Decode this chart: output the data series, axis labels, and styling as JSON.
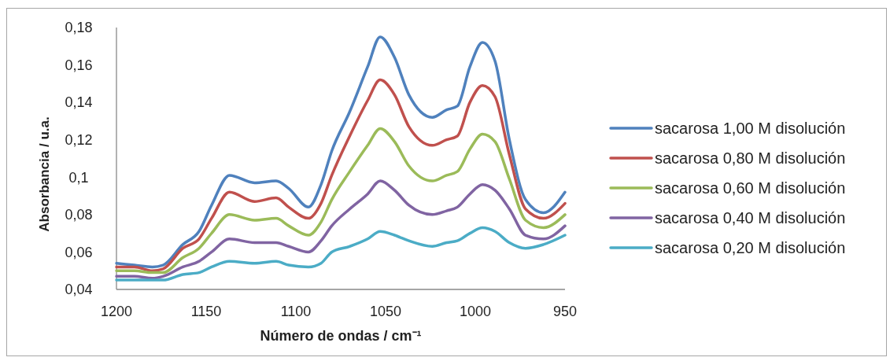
{
  "chart_data": {
    "type": "line",
    "xlabel": "Número de ondas / cm⁻¹",
    "ylabel": "Absorbancia / u.a.",
    "x": [
      1200,
      1190,
      1180,
      1174,
      1163,
      1154,
      1147,
      1137,
      1123,
      1111,
      1104,
      1093,
      1086,
      1080,
      1070,
      1060,
      1053,
      1045,
      1037,
      1024,
      1016,
      1010,
      1003,
      996,
      989,
      981,
      972,
      962,
      950
    ],
    "xlim": [
      1200,
      950
    ],
    "xticks": [
      1200,
      1150,
      1100,
      1050,
      1000,
      950
    ],
    "ylim": [
      0.04,
      0.18
    ],
    "yticks": [
      {
        "value": 0.04,
        "label": "0,04"
      },
      {
        "value": 0.06,
        "label": "0,06"
      },
      {
        "value": 0.08,
        "label": "0,08"
      },
      {
        "value": 0.1,
        "label": "0,1"
      },
      {
        "value": 0.12,
        "label": "0,12"
      },
      {
        "value": 0.14,
        "label": "0,14"
      },
      {
        "value": 0.16,
        "label": "0,16"
      },
      {
        "value": 0.18,
        "label": "0,18"
      }
    ],
    "legend": "right",
    "series": [
      {
        "name": "sacarosa 1,00 M disolución",
        "color": "#4f81bd",
        "values": [
          0.054,
          0.053,
          0.052,
          0.053,
          0.064,
          0.071,
          0.085,
          0.101,
          0.097,
          0.098,
          0.094,
          0.084,
          0.096,
          0.114,
          0.135,
          0.159,
          0.175,
          0.164,
          0.144,
          0.132,
          0.136,
          0.138,
          0.159,
          0.172,
          0.162,
          0.12,
          0.088,
          0.081,
          0.092
        ]
      },
      {
        "name": "sacarosa 0,80 M disolución",
        "color": "#c0504d",
        "values": [
          0.052,
          0.052,
          0.05,
          0.051,
          0.062,
          0.067,
          0.078,
          0.092,
          0.087,
          0.089,
          0.084,
          0.078,
          0.086,
          0.101,
          0.122,
          0.141,
          0.152,
          0.144,
          0.127,
          0.117,
          0.12,
          0.122,
          0.14,
          0.149,
          0.143,
          0.112,
          0.083,
          0.078,
          0.086
        ]
      },
      {
        "name": "sacarosa 0,60 M disolución",
        "color": "#9bbb59",
        "values": [
          0.05,
          0.05,
          0.049,
          0.049,
          0.057,
          0.062,
          0.07,
          0.08,
          0.077,
          0.078,
          0.074,
          0.069,
          0.076,
          0.088,
          0.103,
          0.117,
          0.126,
          0.119,
          0.106,
          0.098,
          0.101,
          0.103,
          0.115,
          0.123,
          0.119,
          0.099,
          0.077,
          0.073,
          0.08
        ]
      },
      {
        "name": "sacarosa 0,40 M disolución",
        "color": "#8064a2",
        "values": [
          0.047,
          0.047,
          0.046,
          0.047,
          0.052,
          0.055,
          0.06,
          0.067,
          0.065,
          0.065,
          0.063,
          0.06,
          0.066,
          0.074,
          0.083,
          0.091,
          0.098,
          0.093,
          0.085,
          0.08,
          0.082,
          0.084,
          0.091,
          0.096,
          0.093,
          0.083,
          0.069,
          0.067,
          0.074
        ]
      },
      {
        "name": "sacarosa 0,20 M disolución",
        "color": "#4bacc6",
        "values": [
          0.045,
          0.045,
          0.045,
          0.045,
          0.048,
          0.049,
          0.052,
          0.055,
          0.054,
          0.055,
          0.053,
          0.052,
          0.054,
          0.06,
          0.063,
          0.067,
          0.071,
          0.069,
          0.066,
          0.063,
          0.065,
          0.066,
          0.07,
          0.073,
          0.071,
          0.065,
          0.062,
          0.064,
          0.069
        ]
      }
    ]
  }
}
